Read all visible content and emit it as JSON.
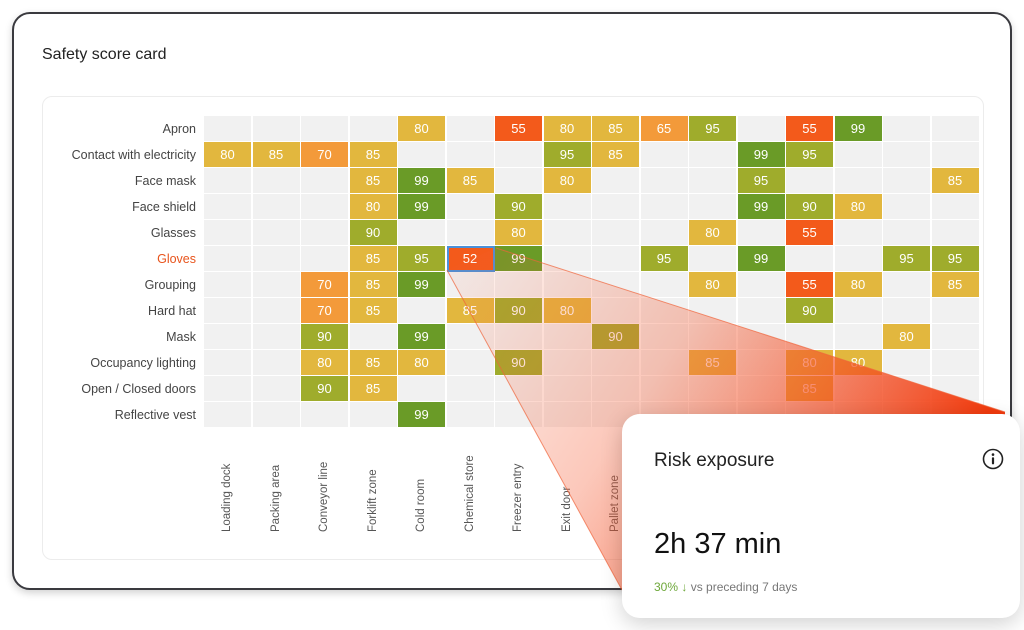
{
  "card": {
    "title": "Safety score card"
  },
  "popover": {
    "title": "Risk exposure",
    "info_icon": "info-icon",
    "value": "2h 37 min",
    "delta_pct": "30% ↓",
    "delta_text": "vs preceding 7 days"
  },
  "colors": {
    "red": "#f35a1b",
    "orange": "#f39a3a",
    "amber": "#e2b73e",
    "lime": "#9fac2c",
    "green": "#6a9b27",
    "empty": "#f1f1f1",
    "highlight_label": "#e8541c",
    "selected_outline": "#4a90d9"
  },
  "chart_data": {
    "type": "heatmap",
    "title": "Safety score card",
    "rows": [
      "Apron",
      "Contact with electricity",
      "Face mask",
      "Face shield",
      "Glasses",
      "Gloves",
      "Grouping",
      "Hard hat",
      "Mask",
      "Occupancy lighting",
      "Open / Closed doors",
      "Reflective vest"
    ],
    "highlighted_row": "Gloves",
    "columns": [
      "Loading dock",
      "Packing area",
      "Conveyor line",
      "Forklift zone",
      "Cold room",
      "Chemical store",
      "Freezer entry",
      "Exit door",
      "Pallet zone"
    ],
    "grid_columns": 16,
    "selected_cell": {
      "row": 5,
      "col": 5,
      "value": 52
    },
    "values": [
      [
        null,
        null,
        null,
        null,
        80,
        null,
        55,
        80,
        85,
        65,
        95,
        null,
        55,
        99,
        null,
        null
      ],
      [
        80,
        85,
        70,
        85,
        null,
        null,
        null,
        95,
        85,
        null,
        null,
        99,
        95,
        null,
        null,
        null
      ],
      [
        null,
        null,
        null,
        85,
        99,
        85,
        null,
        80,
        null,
        null,
        null,
        95,
        null,
        null,
        null,
        85
      ],
      [
        null,
        null,
        null,
        80,
        99,
        null,
        90,
        null,
        null,
        null,
        null,
        99,
        90,
        80,
        null,
        null
      ],
      [
        null,
        null,
        null,
        90,
        null,
        null,
        80,
        null,
        null,
        null,
        80,
        null,
        55,
        null,
        null,
        null
      ],
      [
        null,
        null,
        null,
        85,
        95,
        52,
        99,
        null,
        null,
        95,
        null,
        99,
        null,
        null,
        95,
        95
      ],
      [
        null,
        null,
        70,
        85,
        99,
        null,
        null,
        null,
        null,
        null,
        80,
        null,
        55,
        80,
        null,
        85
      ],
      [
        null,
        null,
        70,
        85,
        null,
        85,
        90,
        80,
        null,
        null,
        null,
        null,
        90,
        null,
        null,
        null
      ],
      [
        null,
        null,
        90,
        null,
        99,
        null,
        null,
        null,
        90,
        null,
        null,
        null,
        null,
        null,
        80,
        null
      ],
      [
        null,
        null,
        80,
        85,
        80,
        null,
        90,
        null,
        null,
        null,
        85,
        null,
        80,
        80,
        null,
        null
      ],
      [
        null,
        null,
        90,
        85,
        null,
        null,
        null,
        null,
        null,
        null,
        null,
        null,
        85,
        null,
        null,
        null
      ],
      [
        null,
        null,
        null,
        null,
        99,
        null,
        null,
        null,
        null,
        null,
        null,
        null,
        null,
        null,
        null,
        null
      ]
    ]
  }
}
